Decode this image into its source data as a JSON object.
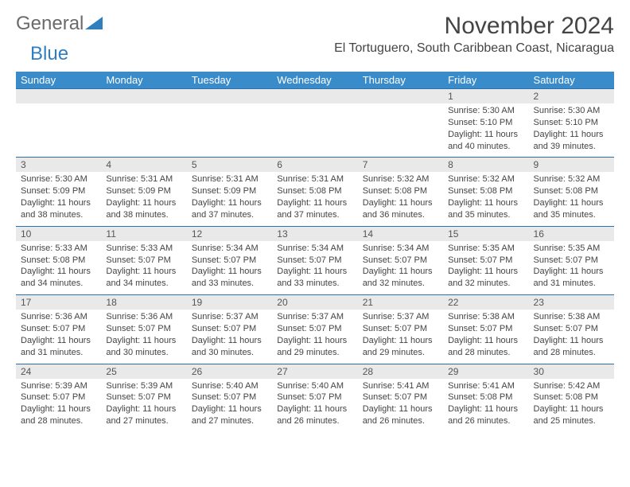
{
  "logo": {
    "part1": "General",
    "part2": "Blue"
  },
  "title": "November 2024",
  "location": "El Tortuguero, South Caribbean Coast, Nicaragua",
  "colors": {
    "header_bg": "#3a8bc9",
    "header_text": "#ffffff",
    "daynum_bg": "#e9e9e9",
    "row_border": "#2d6fa8",
    "logo_blue": "#2f7ec0",
    "logo_gray": "#6a6a6a",
    "body_text": "#444"
  },
  "day_headers": [
    "Sunday",
    "Monday",
    "Tuesday",
    "Wednesday",
    "Thursday",
    "Friday",
    "Saturday"
  ],
  "weeks": [
    {
      "nums": [
        "",
        "",
        "",
        "",
        "",
        "1",
        "2"
      ],
      "cells": [
        null,
        null,
        null,
        null,
        null,
        {
          "sunrise": "5:30 AM",
          "sunset": "5:10 PM",
          "daylight": "11 hours and 40 minutes."
        },
        {
          "sunrise": "5:30 AM",
          "sunset": "5:10 PM",
          "daylight": "11 hours and 39 minutes."
        }
      ]
    },
    {
      "nums": [
        "3",
        "4",
        "5",
        "6",
        "7",
        "8",
        "9"
      ],
      "cells": [
        {
          "sunrise": "5:30 AM",
          "sunset": "5:09 PM",
          "daylight": "11 hours and 38 minutes."
        },
        {
          "sunrise": "5:31 AM",
          "sunset": "5:09 PM",
          "daylight": "11 hours and 38 minutes."
        },
        {
          "sunrise": "5:31 AM",
          "sunset": "5:09 PM",
          "daylight": "11 hours and 37 minutes."
        },
        {
          "sunrise": "5:31 AM",
          "sunset": "5:08 PM",
          "daylight": "11 hours and 37 minutes."
        },
        {
          "sunrise": "5:32 AM",
          "sunset": "5:08 PM",
          "daylight": "11 hours and 36 minutes."
        },
        {
          "sunrise": "5:32 AM",
          "sunset": "5:08 PM",
          "daylight": "11 hours and 35 minutes."
        },
        {
          "sunrise": "5:32 AM",
          "sunset": "5:08 PM",
          "daylight": "11 hours and 35 minutes."
        }
      ]
    },
    {
      "nums": [
        "10",
        "11",
        "12",
        "13",
        "14",
        "15",
        "16"
      ],
      "cells": [
        {
          "sunrise": "5:33 AM",
          "sunset": "5:08 PM",
          "daylight": "11 hours and 34 minutes."
        },
        {
          "sunrise": "5:33 AM",
          "sunset": "5:07 PM",
          "daylight": "11 hours and 34 minutes."
        },
        {
          "sunrise": "5:34 AM",
          "sunset": "5:07 PM",
          "daylight": "11 hours and 33 minutes."
        },
        {
          "sunrise": "5:34 AM",
          "sunset": "5:07 PM",
          "daylight": "11 hours and 33 minutes."
        },
        {
          "sunrise": "5:34 AM",
          "sunset": "5:07 PM",
          "daylight": "11 hours and 32 minutes."
        },
        {
          "sunrise": "5:35 AM",
          "sunset": "5:07 PM",
          "daylight": "11 hours and 32 minutes."
        },
        {
          "sunrise": "5:35 AM",
          "sunset": "5:07 PM",
          "daylight": "11 hours and 31 minutes."
        }
      ]
    },
    {
      "nums": [
        "17",
        "18",
        "19",
        "20",
        "21",
        "22",
        "23"
      ],
      "cells": [
        {
          "sunrise": "5:36 AM",
          "sunset": "5:07 PM",
          "daylight": "11 hours and 31 minutes."
        },
        {
          "sunrise": "5:36 AM",
          "sunset": "5:07 PM",
          "daylight": "11 hours and 30 minutes."
        },
        {
          "sunrise": "5:37 AM",
          "sunset": "5:07 PM",
          "daylight": "11 hours and 30 minutes."
        },
        {
          "sunrise": "5:37 AM",
          "sunset": "5:07 PM",
          "daylight": "11 hours and 29 minutes."
        },
        {
          "sunrise": "5:37 AM",
          "sunset": "5:07 PM",
          "daylight": "11 hours and 29 minutes."
        },
        {
          "sunrise": "5:38 AM",
          "sunset": "5:07 PM",
          "daylight": "11 hours and 28 minutes."
        },
        {
          "sunrise": "5:38 AM",
          "sunset": "5:07 PM",
          "daylight": "11 hours and 28 minutes."
        }
      ]
    },
    {
      "nums": [
        "24",
        "25",
        "26",
        "27",
        "28",
        "29",
        "30"
      ],
      "cells": [
        {
          "sunrise": "5:39 AM",
          "sunset": "5:07 PM",
          "daylight": "11 hours and 28 minutes."
        },
        {
          "sunrise": "5:39 AM",
          "sunset": "5:07 PM",
          "daylight": "11 hours and 27 minutes."
        },
        {
          "sunrise": "5:40 AM",
          "sunset": "5:07 PM",
          "daylight": "11 hours and 27 minutes."
        },
        {
          "sunrise": "5:40 AM",
          "sunset": "5:07 PM",
          "daylight": "11 hours and 26 minutes."
        },
        {
          "sunrise": "5:41 AM",
          "sunset": "5:07 PM",
          "daylight": "11 hours and 26 minutes."
        },
        {
          "sunrise": "5:41 AM",
          "sunset": "5:08 PM",
          "daylight": "11 hours and 26 minutes."
        },
        {
          "sunrise": "5:42 AM",
          "sunset": "5:08 PM",
          "daylight": "11 hours and 25 minutes."
        }
      ]
    }
  ],
  "labels": {
    "sunrise": "Sunrise: ",
    "sunset": "Sunset: ",
    "daylight": "Daylight: "
  }
}
